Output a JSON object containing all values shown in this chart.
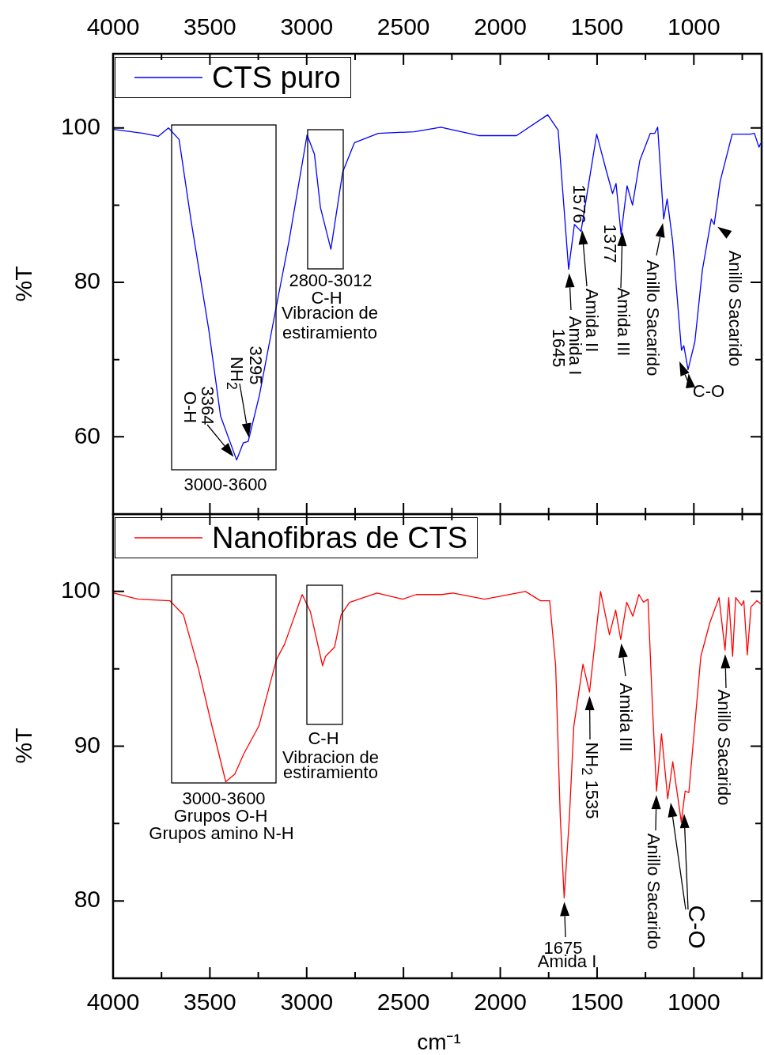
{
  "chart_data": [
    {
      "type": "line",
      "ylabel": "%T",
      "legend": "top left",
      "xlim": [
        4000,
        650
      ],
      "xticks": [
        4000,
        {
          "value": 3750,
          "label": null
        },
        3500,
        {
          "value": 3250,
          "label": null
        },
        3000,
        {
          "value": 2750,
          "label": null
        },
        2500,
        {
          "value": 2250,
          "label": null
        },
        2000,
        {
          "value": 1750,
          "label": null
        },
        1500,
        {
          "value": 1250,
          "label": null
        },
        1000,
        {
          "value": 750,
          "label": null
        }
      ],
      "ylim": [
        50,
        109.6
      ],
      "yticks": [
        60,
        {
          "value": 70,
          "label": null
        },
        80,
        {
          "value": 90,
          "label": null
        },
        100
      ],
      "series": [
        {
          "name": "CTS puro",
          "color": "#0000ff",
          "x": [
            3997,
            3843,
            3767,
            3714,
            3659,
            3598,
            3506,
            3445,
            3362,
            3328,
            3302,
            3244,
            3159,
            3091,
            2998,
            2960,
            2929,
            2875,
            2814,
            2753,
            2630,
            2445,
            2307,
            2108,
            1916,
            1755,
            1701,
            1647,
            1617,
            1583,
            1502,
            1455,
            1420,
            1402,
            1376,
            1345,
            1317,
            1279,
            1225,
            1202,
            1187,
            1156,
            1138,
            1110,
            1064,
            1052,
            1030,
            995,
            956,
            910,
            895,
            864,
            802,
            710,
            687,
            664,
            655
          ],
          "values": [
            99.8,
            99.3,
            98.9,
            100,
            98.5,
            88.1,
            73.9,
            62.7,
            57.0,
            59.2,
            59.4,
            65.4,
            76.6,
            85.4,
            99.1,
            96.6,
            89.7,
            84.3,
            94.3,
            98.1,
            99.3,
            99.5,
            100.1,
            99.0,
            99.0,
            101.7,
            99.7,
            81.7,
            87.5,
            86.6,
            99.2,
            94.7,
            91.5,
            92.8,
            86.2,
            92.5,
            90.0,
            95.8,
            99.3,
            99.3,
            100.1,
            88.2,
            90.8,
            85.4,
            71.2,
            71.8,
            68.7,
            72.3,
            81.6,
            88.2,
            87.5,
            93.1,
            99.2,
            99.2,
            99.3,
            97.5,
            98.0
          ]
        }
      ],
      "annotations": [
        "3000-3600",
        "2800-3012",
        "C-H",
        "Vibracion de\nestiramiento",
        "3295",
        {
          "text": "NH$_{2}$",
          "x": 3295,
          "y": 59.4
        },
        {
          "text": "3364",
          "x": 3364,
          "y": 57.0
        },
        "O-H",
        "1576",
        "Amida II",
        {
          "text": "Amida I",
          "x": 1645,
          "y": 81.7
        },
        "1645",
        "1377",
        "Amida III",
        {
          "text": "Anillo Sacarido",
          "x": 1156,
          "y": 88.2
        },
        {
          "text": "C-O",
          "x": 1030,
          "y": 68.7
        },
        {
          "text": "Anillo Sacarido",
          "x": 895,
          "y": 87.5
        }
      ]
    },
    {
      "type": "line",
      "ylabel": "%T",
      "xlabel": "cm⁻¹",
      "legend": "top left",
      "xlim": [
        4000,
        650
      ],
      "xticks": [
        4000,
        {
          "value": 3750,
          "label": null
        },
        3500,
        {
          "value": 3250,
          "label": null
        },
        3000,
        {
          "value": 2750,
          "label": null
        },
        2500,
        {
          "value": 2250,
          "label": null
        },
        2000,
        {
          "value": 1750,
          "label": null
        },
        1500,
        {
          "value": 1250,
          "label": null
        },
        1000,
        {
          "value": 750,
          "label": null
        }
      ],
      "ylim": [
        75,
        105
      ],
      "yticks": [
        80,
        {
          "value": 85,
          "label": null
        },
        90,
        {
          "value": 95,
          "label": null
        },
        100
      ],
      "series": [
        {
          "name": "Nanofibras de CTS",
          "color": "#ff0000",
          "x": [
            3997,
            3871,
            3707,
            3637,
            3559,
            3497,
            3418,
            3371,
            3325,
            3247,
            3156,
            3114,
            3023,
            2981,
            2918,
            2903,
            2856,
            2822,
            2778,
            2637,
            2504,
            2434,
            2301,
            2245,
            2081,
            1870,
            1792,
            1745,
            1714,
            1690,
            1670,
            1643,
            1620,
            1573,
            1539,
            1482,
            1436,
            1404,
            1378,
            1347,
            1315,
            1284,
            1260,
            1237,
            1213,
            1193,
            1167,
            1135,
            1109,
            1065,
            1045,
            1026,
            964,
            917,
            870,
            839,
            820,
            800,
            784,
            753,
            742,
            724,
            705,
            674,
            655
          ],
          "values": [
            99.9,
            99.5,
            99.4,
            98.5,
            95.0,
            91.7,
            87.7,
            88.2,
            89.5,
            91.3,
            95.6,
            96.6,
            99.8,
            98.7,
            95.2,
            95.8,
            96.4,
            98.5,
            99.3,
            99.9,
            99.5,
            99.8,
            99.8,
            99.9,
            99.5,
            100.0,
            99.4,
            99.4,
            95.2,
            85.4,
            80.2,
            85.4,
            91.3,
            95.3,
            93.5,
            100.0,
            97.2,
            98.8,
            96.9,
            99.3,
            98.4,
            99.8,
            99.3,
            99.5,
            92.3,
            87.1,
            90.8,
            86.6,
            89.0,
            85.1,
            87.1,
            87.0,
            95.8,
            98.0,
            99.6,
            96.2,
            99.6,
            95.8,
            99.6,
            99.1,
            99.4,
            95.9,
            99.0,
            99.4,
            99.2
          ]
        }
      ],
      "annotations": [
        "3000-3600",
        "Grupos O-H",
        "Grupos amino N-H",
        "C-H",
        "Vibracion de\nestiramiento",
        {
          "text": "NH$_{2}$ 1535",
          "x": 1539,
          "y": 93.5
        },
        {
          "text": "Amida III",
          "x": 1378,
          "y": 96.9
        },
        {
          "text": "Anillo Sacarido",
          "x": 1193,
          "y": 87.1
        },
        "C-O",
        {
          "text": "Anillo Sacarido",
          "x": 839,
          "y": 96.2
        },
        {
          "text": "1675",
          "x": 1670,
          "y": 80.2
        },
        "Amida I"
      ]
    }
  ]
}
